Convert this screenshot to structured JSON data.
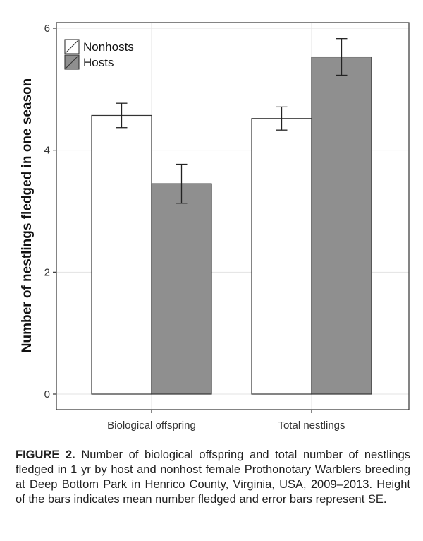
{
  "chart_data": {
    "type": "bar",
    "categories": [
      "Biological offspring",
      "Total nestlings"
    ],
    "series": [
      {
        "name": "Nonhosts",
        "values": [
          4.57,
          4.52
        ],
        "se": [
          0.2,
          0.19
        ],
        "color": "#ffffff"
      },
      {
        "name": "Hosts",
        "values": [
          3.45,
          5.53
        ],
        "se": [
          0.32,
          0.3
        ],
        "color": "#8f8f8f"
      }
    ],
    "xlabel": "",
    "ylabel": "Number of nestlings fledged in one season",
    "ylim": [
      0,
      6
    ],
    "yticks": [
      0,
      2,
      4,
      6
    ],
    "grid": true,
    "legend_position": "top-left"
  },
  "caption": {
    "label": "FIGURE 2.",
    "text": "Number of biological offspring and total number of nestlings fledged in 1 yr by host and nonhost female Prothonotary Warblers breeding at Deep Bottom Park in Henrico County, Virginia, USA, 2009–2013. Height of the bars indicates mean number fledged and error bars represent SE."
  }
}
